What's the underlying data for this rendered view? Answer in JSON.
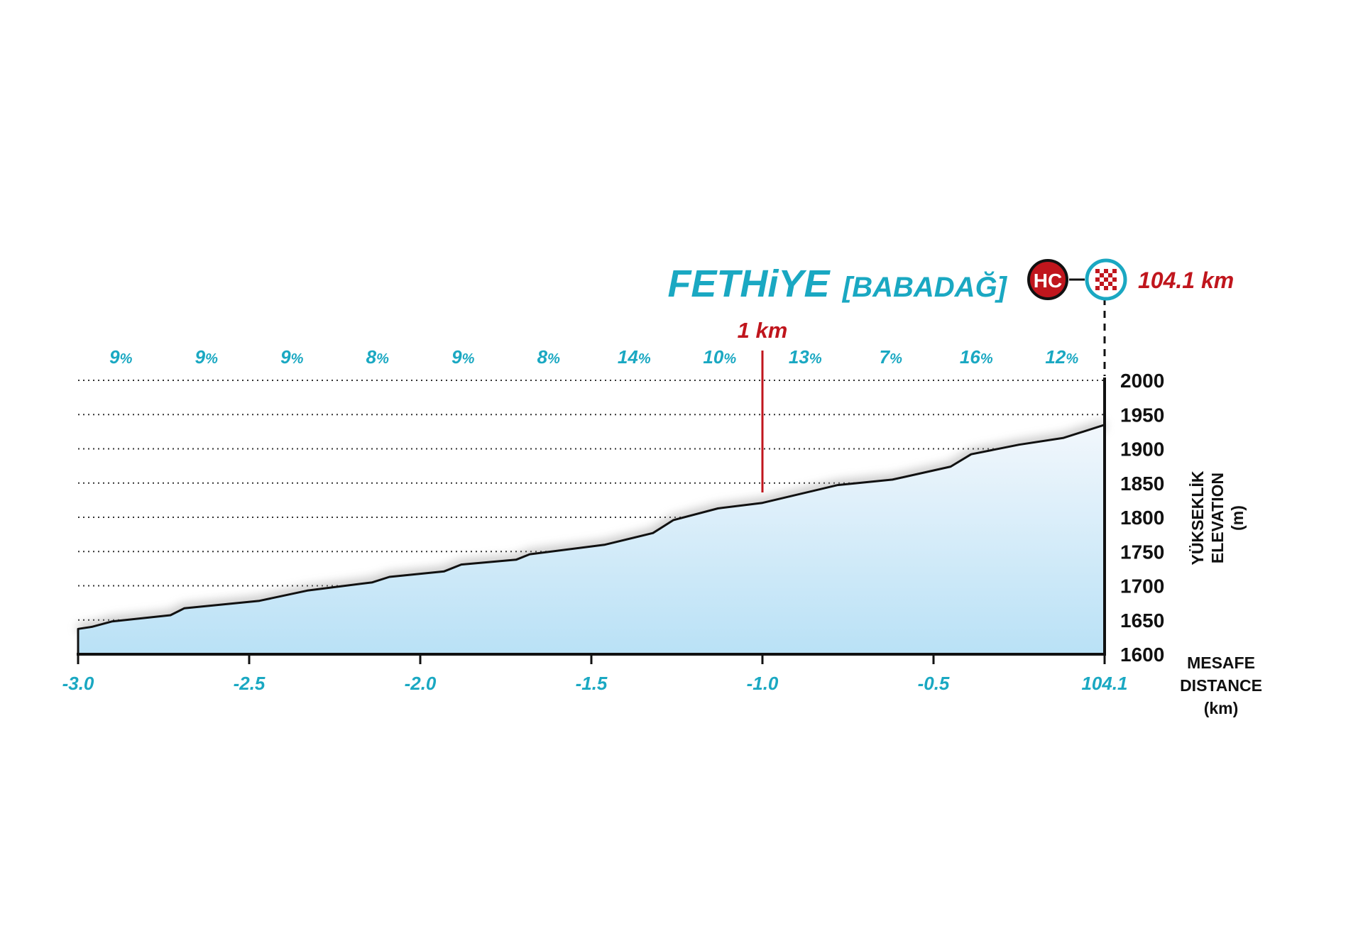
{
  "header": {
    "finish_name": "FETHiYE",
    "finish_sub": "[BABADAĞ]",
    "category_badge": "HC",
    "finish_icon": "checkered-flag-icon",
    "distance_label": "104.1 km"
  },
  "marker_1km": {
    "label": "1 km",
    "x": -1.0
  },
  "colors": {
    "accent": "#1aa8c2",
    "red": "#c0161d",
    "fill_top": "#f2f7fc",
    "fill_bottom": "#b9e1f6",
    "grid": "#333333",
    "profile": "#111111"
  },
  "chart_data": {
    "type": "area",
    "x_tick_labels": [
      "-3.0",
      "-2.5",
      "-2.0",
      "-1.5",
      "-1.0",
      "-0.5",
      "104.1"
    ],
    "x_tick_values": [
      -3.0,
      -2.5,
      -2.0,
      -1.5,
      -1.0,
      -0.5,
      0.0
    ],
    "y_ticks": [
      1600,
      1650,
      1700,
      1750,
      1800,
      1850,
      1900,
      1950,
      2000
    ],
    "xlim": [
      -3.0,
      0.0
    ],
    "ylim": [
      1600,
      2000
    ],
    "xlabel_tr": "MESAFE",
    "xlabel_en": "DISTANCE",
    "xlabel_unit": "(km)",
    "ylabel_tr": "YÜKSEKLİK",
    "ylabel_en": "ELEVATION",
    "ylabel_unit": "(m)",
    "grid": true,
    "gradients": [
      "9",
      "9",
      "9",
      "8",
      "9",
      "8",
      "14",
      "10",
      "13",
      "7",
      "16",
      "12"
    ],
    "gradient_unit": "%",
    "x": [
      -3.0,
      -2.96,
      -2.9,
      -2.73,
      -2.69,
      -2.47,
      -2.33,
      -2.14,
      -2.09,
      -1.93,
      -1.88,
      -1.72,
      -1.68,
      -1.46,
      -1.32,
      -1.26,
      -1.13,
      -1.0,
      -0.78,
      -0.62,
      -0.45,
      -0.39,
      -0.25,
      -0.12,
      0.0
    ],
    "y": [
      1637,
      1640,
      1648,
      1657,
      1667,
      1678,
      1693,
      1705,
      1713,
      1721,
      1731,
      1738,
      1746,
      1760,
      1777,
      1796,
      1813,
      1821,
      1847,
      1855,
      1874,
      1892,
      1906,
      1916,
      1935
    ]
  }
}
